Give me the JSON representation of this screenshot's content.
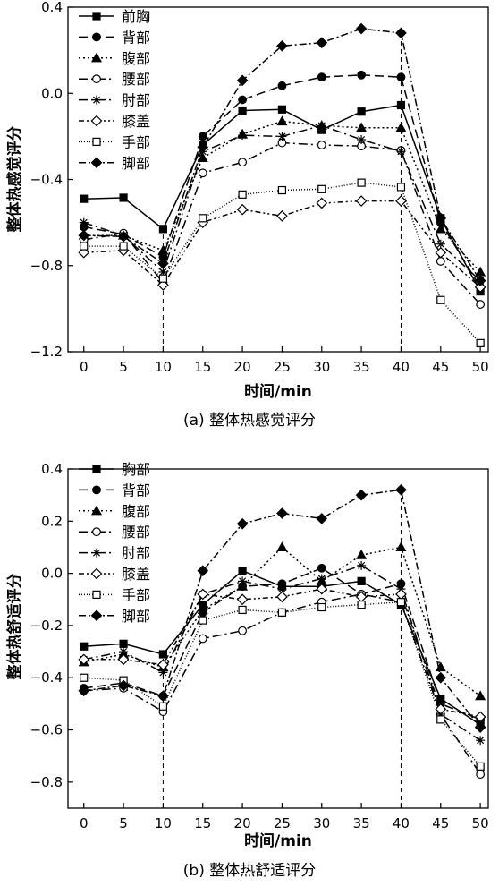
{
  "chart_data": [
    {
      "type": "line",
      "caption": "(a) 整体热感觉评分",
      "xlabel": "时间/min",
      "ylabel": "整体热感觉评分",
      "x": [
        0,
        5,
        10,
        15,
        20,
        25,
        30,
        35,
        40,
        45,
        50
      ],
      "xlim": [
        -2,
        51
      ],
      "ylim": [
        -1.2,
        0.4
      ],
      "yticks": [
        -1.2,
        -0.8,
        -0.4,
        0.0,
        0.4
      ],
      "ytick_labels": [
        "−1.2",
        "−0.8",
        "−0.4",
        "0.0",
        "0.4"
      ],
      "xticks": [
        0,
        5,
        10,
        15,
        20,
        25,
        30,
        35,
        40,
        45,
        50
      ],
      "vlines": [
        10,
        40
      ],
      "legend_position": "top-left",
      "grid": false,
      "series": [
        {
          "name": "前胸",
          "dash": "",
          "marker": "square",
          "fill": true,
          "values": [
            -0.49,
            -0.485,
            -0.63,
            -0.24,
            -0.08,
            -0.075,
            -0.17,
            -0.085,
            -0.055,
            -0.58,
            -0.92
          ]
        },
        {
          "name": "背部",
          "dash": "10,5",
          "marker": "circle",
          "fill": true,
          "values": [
            -0.62,
            -0.655,
            -0.76,
            -0.2,
            -0.03,
            0.035,
            0.075,
            0.085,
            0.075,
            -0.6,
            -0.9
          ]
        },
        {
          "name": "腹部",
          "dash": "2,3",
          "marker": "triangle",
          "fill": true,
          "values": [
            -0.66,
            -0.66,
            -0.73,
            -0.3,
            -0.19,
            -0.13,
            -0.15,
            -0.16,
            -0.16,
            -0.63,
            -0.83
          ]
        },
        {
          "name": "腰部",
          "dash": "10,4,2,4",
          "marker": "circle",
          "fill": false,
          "values": [
            -0.68,
            -0.65,
            -0.88,
            -0.37,
            -0.32,
            -0.23,
            -0.24,
            -0.245,
            -0.265,
            -0.78,
            -0.98
          ]
        },
        {
          "name": "肘部",
          "dash": "10,4,2,4",
          "marker": "star",
          "fill": false,
          "values": [
            -0.6,
            -0.66,
            -0.83,
            -0.27,
            -0.195,
            -0.2,
            -0.15,
            -0.215,
            -0.27,
            -0.7,
            -0.87
          ]
        },
        {
          "name": "膝盖",
          "dash": "6,3,2,3,2,3",
          "marker": "diamond",
          "fill": false,
          "values": [
            -0.74,
            -0.73,
            -0.89,
            -0.6,
            -0.54,
            -0.57,
            -0.51,
            -0.5,
            -0.5,
            -0.74,
            -0.9
          ]
        },
        {
          "name": "手部",
          "dash": "1,2",
          "marker": "square",
          "fill": false,
          "values": [
            -0.71,
            -0.71,
            -0.86,
            -0.58,
            -0.47,
            -0.45,
            -0.445,
            -0.415,
            -0.435,
            -0.96,
            -1.16
          ]
        },
        {
          "name": "脚部",
          "dash": "8,3,2,3",
          "marker": "diamond",
          "fill": true,
          "values": [
            -0.66,
            -0.665,
            -0.79,
            -0.25,
            0.06,
            0.22,
            0.235,
            0.3,
            0.28,
            -0.58,
            -0.87
          ]
        }
      ]
    },
    {
      "type": "line",
      "caption": "(b) 整体热舒适评分",
      "xlabel": "时间/min",
      "ylabel": "整体热舒适评分",
      "x": [
        0,
        5,
        10,
        15,
        20,
        25,
        30,
        35,
        40,
        45,
        50
      ],
      "xlim": [
        -2,
        51
      ],
      "ylim": [
        -0.9,
        0.4
      ],
      "yticks": [
        -0.8,
        -0.6,
        -0.4,
        -0.2,
        0.0,
        0.2,
        0.4
      ],
      "ytick_labels": [
        "−0.8",
        "−0.6",
        "−0.4",
        "−0.2",
        "0.0",
        "0.2",
        "0.4"
      ],
      "xticks": [
        0,
        5,
        10,
        15,
        20,
        25,
        30,
        35,
        40,
        45,
        50
      ],
      "vlines": [
        10,
        40
      ],
      "legend_position": "top-left",
      "grid": false,
      "series": [
        {
          "name": "胸部",
          "dash": "",
          "marker": "square",
          "fill": true,
          "values": [
            -0.28,
            -0.27,
            -0.31,
            -0.12,
            0.01,
            -0.05,
            -0.05,
            -0.03,
            -0.12,
            -0.48,
            -0.58
          ]
        },
        {
          "name": "背部",
          "dash": "10,5",
          "marker": "circle",
          "fill": true,
          "values": [
            -0.44,
            -0.42,
            -0.47,
            -0.15,
            -0.05,
            -0.04,
            0.02,
            -0.08,
            -0.04,
            -0.5,
            -0.56
          ]
        },
        {
          "name": "腹部",
          "dash": "2,3",
          "marker": "triangle",
          "fill": true,
          "values": [
            -0.34,
            -0.31,
            -0.36,
            -0.14,
            -0.05,
            0.1,
            -0.03,
            0.07,
            0.1,
            -0.36,
            -0.47
          ]
        },
        {
          "name": "腰部",
          "dash": "10,4,2,4",
          "marker": "circle",
          "fill": false,
          "values": [
            -0.45,
            -0.44,
            -0.53,
            -0.25,
            -0.22,
            -0.15,
            -0.11,
            -0.08,
            -0.11,
            -0.54,
            -0.77
          ]
        },
        {
          "name": "肘部",
          "dash": "10,4,2,4",
          "marker": "star",
          "fill": false,
          "values": [
            -0.33,
            -0.3,
            -0.38,
            -0.08,
            -0.03,
            -0.06,
            -0.02,
            0.03,
            -0.06,
            -0.54,
            -0.64
          ]
        },
        {
          "name": "膝盖",
          "dash": "6,3,2,3,2,3",
          "marker": "diamond",
          "fill": false,
          "values": [
            -0.33,
            -0.33,
            -0.35,
            -0.08,
            -0.1,
            -0.09,
            -0.06,
            -0.09,
            -0.08,
            -0.52,
            -0.55
          ]
        },
        {
          "name": "手部",
          "dash": "1,2",
          "marker": "square",
          "fill": false,
          "values": [
            -0.4,
            -0.41,
            -0.51,
            -0.18,
            -0.14,
            -0.15,
            -0.13,
            -0.12,
            -0.11,
            -0.56,
            -0.74
          ]
        },
        {
          "name": "脚部",
          "dash": "8,3,2,3",
          "marker": "diamond",
          "fill": true,
          "values": [
            -0.45,
            -0.43,
            -0.47,
            0.01,
            0.19,
            0.23,
            0.21,
            0.3,
            0.32,
            -0.4,
            -0.59
          ]
        }
      ]
    }
  ]
}
